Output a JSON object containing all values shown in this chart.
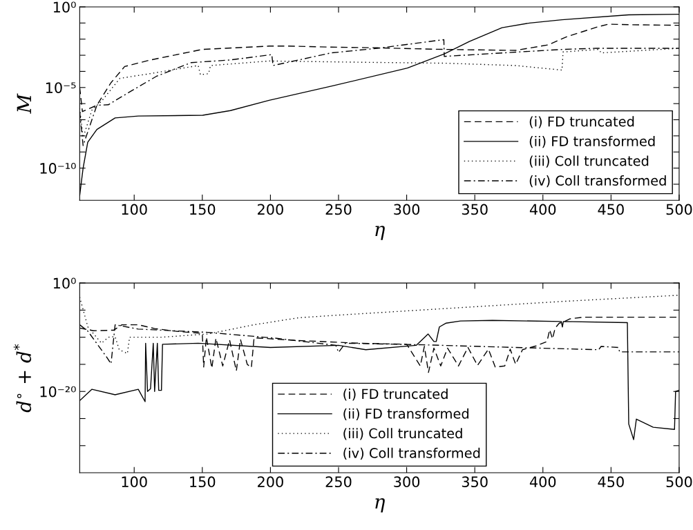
{
  "chart_data": [
    {
      "type": "line",
      "xlabel": "η",
      "ylabel": "M",
      "log": "y",
      "xlim": [
        60,
        500
      ],
      "xticks": [
        100,
        150,
        200,
        250,
        300,
        350,
        400,
        450,
        500
      ],
      "ylim": [
        1e-12,
        1
      ],
      "yticks": [
        {
          "value": 1,
          "label": "10⁰"
        },
        {
          "value": 0.1,
          "label": null
        },
        {
          "value": 0.01,
          "label": null
        },
        {
          "value": 0.001,
          "label": null
        },
        {
          "value": 0.0001,
          "label": null
        },
        {
          "value": 1e-05,
          "label": "10⁻⁵"
        },
        {
          "value": 1e-06,
          "label": null
        },
        {
          "value": 1e-07,
          "label": null
        },
        {
          "value": 1e-08,
          "label": null
        },
        {
          "value": 1e-09,
          "label": null
        },
        {
          "value": 1e-10,
          "label": "10⁻¹⁰"
        },
        {
          "value": 1e-11,
          "label": null
        }
      ],
      "legend": "bottom right",
      "grid": false,
      "series": [
        {
          "name": "(i) FD truncated",
          "color": "#000000",
          "line_style": "dashed",
          "x": [
            60,
            62,
            72.6,
            83,
            93,
            111.5,
            150,
            199,
            213,
            244.6,
            278.5,
            327.6,
            380,
            403.8,
            417.4,
            439.4,
            448,
            464.8,
            500
          ],
          "values": [
            1e-05,
            3.2e-07,
            7.9e-07,
            2e-05,
            0.0002,
            0.0005,
            0.0023,
            0.0037,
            0.0037,
            0.0032,
            0.0029,
            0.0023,
            0.002,
            0.0044,
            0.014,
            0.055,
            0.085,
            0.078,
            0.072
          ]
        },
        {
          "name": "(ii) FD transformed",
          "color": "#000000",
          "line_style": "solid",
          "x": [
            60,
            62.5,
            65.9,
            72.6,
            86,
            103,
            150.3,
            170.6,
            199,
            244.6,
            300.5,
            327.6,
            346,
            370,
            390.3,
            414,
            463,
            500
          ],
          "values": [
            2e-12,
            1e-10,
            4e-09,
            2.5e-08,
            1.3e-07,
            1.7e-07,
            1.9e-07,
            3.7e-07,
            1.6e-06,
            1.2e-05,
            0.00016,
            0.0012,
            0.0072,
            0.051,
            0.1,
            0.16,
            0.32,
            0.35
          ]
        },
        {
          "name": "(iii) Coll truncated",
          "color": "#000000",
          "line_style": "dotted",
          "x": [
            60,
            62.5,
            69,
            76,
            89.5,
            111.5,
            147,
            148.6,
            154.6,
            156,
            199,
            265,
            329,
            380,
            414,
            414.8,
            441,
            442.8,
            500
          ],
          "values": [
            5e-07,
            7.9e-09,
            4e-07,
            1.4e-06,
            3.7e-05,
            7.2e-05,
            0.00023,
            6.2e-05,
            7.2e-05,
            0.00023,
            0.00044,
            0.00037,
            0.00032,
            0.00023,
            0.00012,
            0.0016,
            0.0023,
            0.0014,
            0.0027
          ]
        },
        {
          "name": "(iv) Coll transformed",
          "color": "#000000",
          "line_style": "dashdot",
          "x": [
            60,
            62.5,
            72.6,
            81,
            96.3,
            116.6,
            141.9,
            170.6,
            201,
            201.9,
            244.6,
            278.5,
            327.3,
            327.6,
            414,
            439.3,
            500
          ],
          "values": [
            3.2e-07,
            2.5e-09,
            7.9e-07,
            8.5e-07,
            5.1e-06,
            5.1e-05,
            0.00035,
            0.00051,
            0.0011,
            0.00023,
            0.0014,
            0.0027,
            0.0093,
            0.00085,
            0.0023,
            0.0027,
            0.0027
          ]
        }
      ]
    },
    {
      "type": "line",
      "xlabel": "η",
      "ylabel": "d$^{∘}$ + d$^{*}$",
      "log": "y",
      "xlim": [
        60,
        500
      ],
      "xticks": [
        100,
        150,
        200,
        250,
        300,
        350,
        400,
        450,
        500
      ],
      "ylim": [
        1e-35,
        1
      ],
      "yticks": [
        {
          "value": 1,
          "label": "10⁰"
        },
        {
          "value": 1e-05,
          "label": null
        },
        {
          "value": 1e-10,
          "label": null
        },
        {
          "value": 1e-15,
          "label": null
        },
        {
          "value": 1e-20,
          "label": "10⁻²⁰"
        },
        {
          "value": 1e-25,
          "label": null
        },
        {
          "value": 1e-30,
          "label": null
        }
      ],
      "legend": "bottom",
      "grid": false,
      "series": [
        {
          "name": "(i) FD truncated",
          "color": "#000000",
          "line_style": "dashed",
          "x": [
            60,
            70,
            85,
            91,
            103,
            115,
            130,
            150,
            151,
            153,
            157,
            160,
            165,
            170,
            175,
            178,
            183,
            186,
            188,
            220,
            265,
            300,
            310,
            313,
            316,
            320,
            325,
            330,
            338,
            345,
            352,
            360,
            365,
            372,
            376,
            380,
            385,
            395,
            403,
            405,
            407,
            409,
            412,
            415,
            420,
            430,
            500
          ],
          "values": [
            5e-09,
            1.6e-09,
            2e-09,
            2e-08,
            2e-08,
            4e-09,
            1.3e-09,
            5e-10,
            3.2e-16,
            1e-10,
            2e-16,
            6.3e-11,
            5e-16,
            3.2e-11,
            6.3e-17,
            4e-11,
            1e-15,
            2.5e-16,
            7.9e-11,
            2.5e-11,
            7.9e-12,
            5e-12,
            5e-16,
            2e-12,
            3.2e-17,
            1e-12,
            5e-16,
            1e-12,
            5e-16,
            1.3e-12,
            6.3e-16,
            6.3e-13,
            3.2e-16,
            5e-16,
            6.3e-13,
            1e-15,
            5e-13,
            2.5e-12,
            1.6e-11,
            2.5e-09,
            5e-11,
            5e-09,
            4e-08,
            6.3e-08,
            2.5e-07,
            5e-07,
            5e-07
          ]
        },
        {
          "name": "(ii) FD transformed",
          "color": "#000000",
          "line_style": "solid",
          "x": [
            60,
            69,
            86,
            103,
            108,
            108.4,
            109.8,
            112,
            114,
            115,
            117,
            118,
            120,
            120.8,
            147,
            200,
            250,
            270,
            307,
            315.7,
            320,
            321.7,
            324,
            329,
            339.5,
            363,
            413.5,
            414.3,
            415,
            462,
            463,
            466.6,
            468.6,
            481,
            496.6,
            497.4,
            500
          ],
          "values": [
            2e-22,
            2.5e-20,
            2.5e-21,
            2.5e-20,
            1.3e-22,
            7.9e-12,
            1e-20,
            3.2e-20,
            7.9e-12,
            1e-20,
            7.9e-12,
            1.6e-20,
            1.6e-20,
            5e-12,
            7.9e-12,
            1.3e-12,
            3.2e-12,
            5e-13,
            3.2e-12,
            4e-10,
            1.6e-11,
            1.6e-11,
            7.9e-09,
            4e-08,
            1e-07,
            1.3e-07,
            7.9e-08,
            7.9e-09,
            7.9e-08,
            5e-08,
            1e-26,
            1.3e-29,
            7.9e-26,
            2.5e-27,
            1e-27,
            1e-20,
            1.6e-20
          ]
        },
        {
          "name": "(iii) Coll truncated",
          "color": "#000000",
          "line_style": "dotted",
          "x": [
            60,
            66,
            76,
            81,
            86,
            89,
            95,
            96.6,
            120,
            154,
            188,
            221,
            244.6,
            329,
            414,
            500
          ],
          "values": [
            0.0025,
            7.9e-09,
            7.9e-12,
            1e-10,
            1.3e-10,
            5e-13,
            1e-13,
            1e-10,
            1e-10,
            4e-10,
            2e-08,
            4e-07,
            1e-06,
            2e-05,
            0.0004,
            0.0056
          ]
        },
        {
          "name": "(iv) Coll transformed",
          "color": "#000000",
          "line_style": "dashdot",
          "x": [
            60,
            66,
            79.6,
            83,
            86,
            103,
            154,
            204.6,
            248,
            250,
            255,
            312,
            380,
            441,
            442.7,
            455.4,
            456.3,
            500
          ],
          "values": [
            2e-08,
            1.3e-09,
            2.5e-14,
            1.3e-15,
            2e-08,
            3.2e-09,
            7.9e-10,
            6.3e-11,
            3.2e-12,
            1.6e-13,
            7.9e-12,
            4e-12,
            1.3e-12,
            5e-13,
            2e-12,
            1.3e-12,
            2e-13,
            2e-13
          ]
        }
      ]
    }
  ]
}
